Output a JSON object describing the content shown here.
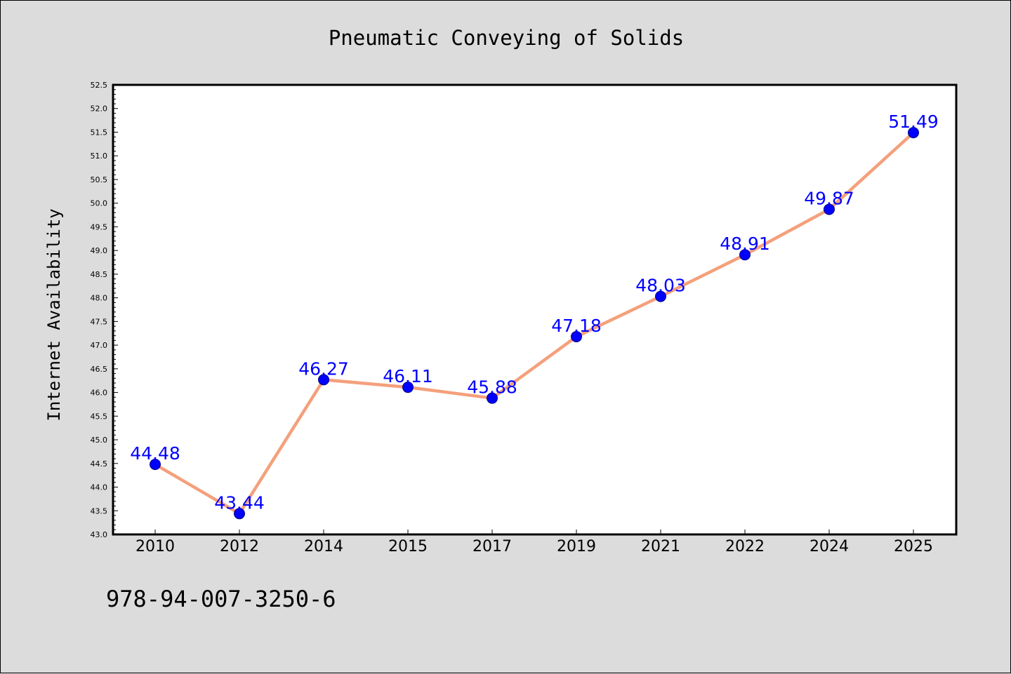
{
  "chart_data": {
    "type": "line",
    "title": "Pneumatic Conveying of Solids",
    "ylabel": "Internet Availability",
    "xlabel": "",
    "categories": [
      "2010",
      "2012",
      "2014",
      "2015",
      "2017",
      "2019",
      "2021",
      "2022",
      "2024",
      "2025"
    ],
    "values": [
      44.48,
      43.44,
      46.27,
      46.11,
      45.88,
      47.18,
      48.03,
      48.91,
      49.87,
      51.49
    ],
    "data_labels": [
      "44.48",
      "43.44",
      "46.27",
      "46.11",
      "45.88",
      "47.18",
      "48.03",
      "48.91",
      "49.87",
      "51.49"
    ],
    "ylim": [
      43.0,
      52.5
    ],
    "y_major_step": 0.5,
    "y_minor_step": 0.1,
    "yticks": [
      "43.0",
      "43.5",
      "44.0",
      "44.5",
      "45.0",
      "45.5",
      "46.0",
      "46.5",
      "47.0",
      "47.5",
      "48.0",
      "48.5",
      "49.0",
      "49.5",
      "50.0",
      "50.5",
      "51.0",
      "51.5",
      "52.0",
      "52.5"
    ],
    "grid": false,
    "line_color": "#f4a07c",
    "marker_color": "#0000ff",
    "label_color": "#0000ff",
    "background_color": "#dcdcdc",
    "plot_background": "#ffffff"
  },
  "footer": {
    "isbn": "978-94-007-3250-6"
  }
}
